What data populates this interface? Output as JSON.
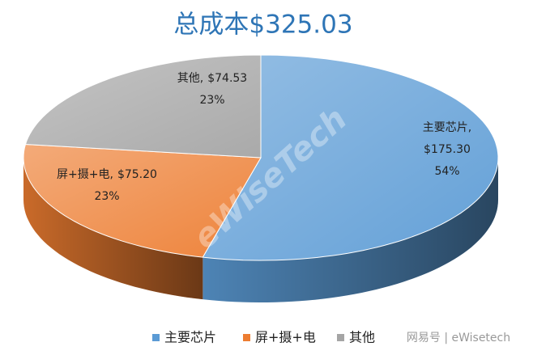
{
  "chart_data": {
    "type": "pie3d",
    "title": "总成本$325.03",
    "categories": [
      "主要芯片",
      "屏+摄+电",
      "其他"
    ],
    "label_names": [
      "主要芯片,",
      "屏+摄+电,",
      "其他,"
    ],
    "values": [
      175.3,
      75.2,
      74.53
    ],
    "value_labels": [
      "$175.30",
      "$75.20",
      "$74.53"
    ],
    "percent_labels": [
      "54%",
      "23%",
      "23%"
    ],
    "colors": [
      "#5b9bd5",
      "#ed7d31",
      "#a5a5a5"
    ],
    "legend": "bottom"
  },
  "watermark": "eWiseTech",
  "footer": "网易号 | eWisetech"
}
